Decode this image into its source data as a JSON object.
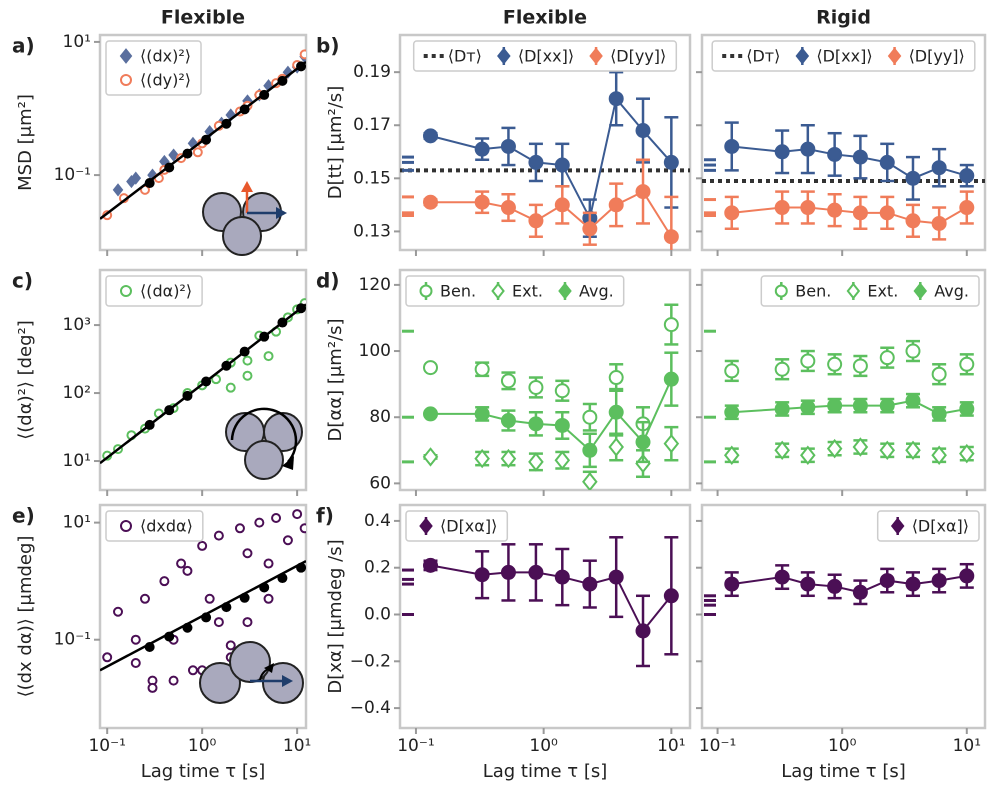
{
  "chart_data": [
    {
      "type": "scatter",
      "title": "Flexible",
      "letter": "a)",
      "ylabel": "MSD [μm²]",
      "sharex": 6,
      "xlog": true,
      "ylog": true,
      "ylim": [
        0.0075,
        12.7
      ],
      "yticks": [
        {
          "value": 0.1,
          "label": "10⁻¹"
        },
        {
          "value": 10,
          "label": "10¹"
        }
      ],
      "legend": "upper left",
      "series": [
        {
          "name": "⟨(dx)²⟩",
          "marker": "diamond",
          "filled": true,
          "color": "#5a6f9e",
          "x": [
            0.13,
            0.18,
            0.2,
            0.3,
            0.4,
            0.5,
            0.8,
            1.2,
            1.6,
            2,
            3,
            4,
            5,
            8,
            10,
            12
          ],
          "values": [
            0.06,
            0.08,
            0.09,
            0.1,
            0.16,
            0.2,
            0.3,
            0.45,
            0.6,
            0.8,
            1.3,
            1.6,
            2.2,
            3.5,
            4.2,
            6
          ]
        },
        {
          "name": "⟨(dy)²⟩",
          "marker": "circle",
          "filled": false,
          "color": "#f07c5a",
          "x": [
            0.1,
            0.15,
            0.25,
            0.35,
            0.4,
            0.6,
            0.9,
            1,
            1.5,
            2.5,
            3,
            4,
            6,
            7,
            10,
            12
          ],
          "values": [
            0.025,
            0.045,
            0.06,
            0.09,
            0.12,
            0.18,
            0.22,
            0.3,
            0.55,
            0.9,
            1.1,
            1.6,
            2.4,
            2.8,
            4.5,
            6.5
          ]
        },
        {
          "type": "line",
          "color": "#000000",
          "x": [
            0.084,
            12.4
          ],
          "values": [
            0.022,
            5
          ]
        },
        {
          "marker": "circle",
          "filled": true,
          "color": "#000000",
          "x": [
            0.28,
            0.45,
            0.7,
            1.1,
            1.8,
            2.8,
            4.5,
            7,
            11
          ],
          "values": [
            0.076,
            0.13,
            0.21,
            0.34,
            0.59,
            0.97,
            1.6,
            2.6,
            4.3
          ]
        }
      ]
    },
    {
      "type": "errorbar",
      "title": "Flexible",
      "letter": "b)",
      "ylabel": "D[tt] [μm²/s]",
      "sharex": 7,
      "ylim": [
        0.123,
        0.204
      ],
      "yticks": [
        0.13,
        0.15,
        0.17,
        0.19
      ],
      "legend": "upper center",
      "x": [
        0.13,
        0.33,
        0.53,
        0.87,
        1.4,
        2.3,
        3.7,
        6,
        10
      ],
      "series": [
        {
          "name": "⟨Dᴛ⟩",
          "type": "hline",
          "color": "#333333",
          "value": 0.153
        },
        {
          "name": "⟨D[xx]⟩",
          "marker": "circle",
          "filled": true,
          "color": "#3b5b92",
          "linestyle": "-",
          "values": [
            0.166,
            0.161,
            0.162,
            0.156,
            0.155,
            0.135,
            0.18,
            0.168,
            0.156
          ],
          "errors": [
            0.001,
            0.004,
            0.007,
            0.007,
            0.008,
            0.007,
            0.01,
            0.012,
            0.017
          ],
          "edge": [
            0.158,
            0.156,
            0.153
          ]
        },
        {
          "name": "⟨D[yy]⟩",
          "marker": "circle",
          "filled": true,
          "color": "#f07c5a",
          "linestyle": "-",
          "values": [
            0.141,
            0.141,
            0.139,
            0.134,
            0.14,
            0.131,
            0.14,
            0.145,
            0.128
          ],
          "errors": [
            0.001,
            0.004,
            0.005,
            0.006,
            0.007,
            0.006,
            0.008,
            0.012,
            0.015
          ],
          "edge": [
            0.143,
            0.137,
            0.136
          ]
        }
      ]
    },
    {
      "type": "errorbar",
      "title": "Rigid",
      "sharex": 8,
      "sharey": 1,
      "legend": "upper center",
      "x": [
        0.13,
        0.33,
        0.53,
        0.87,
        1.4,
        2.3,
        3.7,
        6,
        10
      ],
      "series": [
        {
          "name": "⟨Dᴛ⟩",
          "type": "hline",
          "color": "#333333",
          "value": 0.149
        },
        {
          "name": "⟨D[xx]⟩",
          "marker": "circle",
          "filled": true,
          "color": "#3b5b92",
          "linestyle": "-",
          "values": [
            0.162,
            0.16,
            0.161,
            0.159,
            0.158,
            0.156,
            0.15,
            0.154,
            0.151
          ],
          "errors": [
            0.009,
            0.008,
            0.009,
            0.008,
            0.008,
            0.007,
            0.008,
            0.007,
            0.004
          ],
          "edge": [
            0.157,
            0.155,
            0.153
          ]
        },
        {
          "name": "⟨D[yy]⟩",
          "marker": "circle",
          "filled": true,
          "color": "#f07c5a",
          "linestyle": "-",
          "values": [
            0.137,
            0.139,
            0.139,
            0.138,
            0.137,
            0.137,
            0.134,
            0.133,
            0.139
          ],
          "errors": [
            0.006,
            0.006,
            0.006,
            0.006,
            0.006,
            0.006,
            0.006,
            0.006,
            0.006
          ],
          "edge": [
            0.142,
            0.137,
            0.136
          ]
        }
      ]
    },
    {
      "type": "scatter",
      "letter": "c)",
      "ylabel": "⟨(dα)²⟩ [deg²]",
      "sharex": 6,
      "xlog": true,
      "ylog": true,
      "ylim": [
        3.75,
        6460
      ],
      "yticks": [
        {
          "value": 10,
          "label": "10¹"
        },
        {
          "value": 100,
          "label": "10²"
        },
        {
          "value": 1000,
          "label": "10³"
        }
      ],
      "legend": "upper left",
      "series": [
        {
          "name": "⟨(dα)²⟩",
          "marker": "circle",
          "filled": false,
          "color": "#5cbf5e",
          "x": [
            0.1,
            0.13,
            0.18,
            0.25,
            0.35,
            0.5,
            0.7,
            1,
            1.4,
            2,
            2,
            3,
            3,
            4,
            5,
            6,
            8,
            10,
            12
          ],
          "values": [
            12,
            15,
            24,
            30,
            50,
            60,
            100,
            130,
            160,
            280,
            120,
            300,
            180,
            700,
            350,
            800,
            1300,
            1700,
            2100
          ]
        },
        {
          "type": "line",
          "color": "#000000",
          "x": [
            0.084,
            12.4
          ],
          "values": [
            9.3,
            2020
          ]
        },
        {
          "marker": "circle",
          "filled": true,
          "color": "#000000",
          "x": [
            0.28,
            0.45,
            0.7,
            1.1,
            1.8,
            2.8,
            4.5,
            7,
            11
          ],
          "values": [
            34,
            56,
            91,
            148,
            252,
            407,
            675,
            1090,
            1770
          ]
        }
      ]
    },
    {
      "type": "errorbar",
      "letter": "d)",
      "ylabel": "D[αα] [μm²/s]",
      "sharex": 7,
      "ylim": [
        58,
        124.5
      ],
      "yticks": [
        60,
        80,
        100,
        120
      ],
      "legend": "upper left",
      "x": [
        0.13,
        0.33,
        0.53,
        0.87,
        1.4,
        2.3,
        3.7,
        6,
        10
      ],
      "series": [
        {
          "name": "Ben.",
          "marker": "circle",
          "filled": false,
          "color": "#5cbf5e",
          "values": [
            95,
            94.5,
            91,
            89,
            88,
            80,
            92,
            78,
            108
          ],
          "errors": [
            0.5,
            2,
            2.5,
            3,
            3,
            4,
            4,
            5,
            6
          ],
          "edge": [
            106
          ]
        },
        {
          "name": "Ext.",
          "marker": "diamond",
          "filled": false,
          "color": "#5cbf5e",
          "values": [
            68,
            67.5,
            67.5,
            66.5,
            67,
            60.5,
            71,
            66,
            72
          ],
          "errors": [
            0.5,
            2,
            2,
            2.5,
            2.5,
            3,
            4,
            4,
            5
          ],
          "edge": [
            66.5
          ]
        },
        {
          "name": "Avg.",
          "marker": "circle",
          "filled": true,
          "color": "#5cbf5e",
          "linestyle": "-",
          "values": [
            81,
            81,
            79,
            78,
            77.5,
            70,
            81.5,
            72.5,
            91.5
          ],
          "errors": [
            0.5,
            2,
            3,
            3.5,
            4,
            5,
            7,
            6,
            8
          ],
          "edge": [
            80
          ]
        }
      ]
    },
    {
      "type": "errorbar",
      "sharex": 8,
      "sharey": 4,
      "legend": "upper right",
      "x": [
        0.13,
        0.33,
        0.53,
        0.87,
        1.4,
        2.3,
        3.7,
        6,
        10
      ],
      "series": [
        {
          "name": "Ben.",
          "marker": "circle",
          "filled": false,
          "color": "#5cbf5e",
          "values": [
            94,
            94.5,
            97,
            96,
            95.5,
            98,
            100,
            93,
            96
          ],
          "errors": [
            3,
            3,
            3,
            3,
            3,
            3,
            3,
            3,
            3
          ],
          "edge": [
            106
          ]
        },
        {
          "name": "Ext.",
          "marker": "diamond",
          "filled": false,
          "color": "#5cbf5e",
          "values": [
            68.5,
            70,
            68.5,
            70.5,
            71,
            70,
            70,
            68.5,
            69
          ],
          "errors": [
            2,
            2,
            2,
            2,
            2,
            2,
            2,
            2,
            2
          ],
          "edge": [
            66.5
          ]
        },
        {
          "name": "Avg.",
          "marker": "circle",
          "filled": true,
          "color": "#5cbf5e",
          "linestyle": "-",
          "values": [
            81.5,
            82.5,
            83,
            83.5,
            83.5,
            83.5,
            85,
            81,
            82.5
          ],
          "errors": [
            2,
            2,
            2,
            2,
            2,
            2,
            2,
            2,
            2
          ],
          "edge": [
            80
          ]
        }
      ]
    },
    {
      "type": "scatter",
      "letter": "e)",
      "ylabel": "⟨(dx dα)⟩ [μmdeg]",
      "xlabel": "Lag time τ [s]",
      "xlog": true,
      "ylog": true,
      "xlim": [
        0.084,
        12.4
      ],
      "xticks": [
        {
          "value": 0.1,
          "label": "10⁻¹"
        },
        {
          "value": 1,
          "label": "10⁰"
        },
        {
          "value": 10,
          "label": "10¹"
        }
      ],
      "ylim": [
        0.0031,
        20
      ],
      "yticks": [
        {
          "value": 0.1,
          "label": "10⁻¹"
        },
        {
          "value": 10,
          "label": "10¹"
        }
      ],
      "legend": "upper left",
      "series": [
        {
          "name": "⟨dxdα⟩",
          "marker": "circle",
          "filled": false,
          "color": "#4b0f55",
          "x": [
            0.1,
            0.13,
            0.2,
            0.25,
            0.3,
            0.4,
            0.5,
            0.6,
            0.8,
            1,
            1.2,
            1.5,
            2,
            2.5,
            3,
            4,
            5,
            6,
            8,
            10,
            12,
            0.3,
            0.5,
            1,
            2,
            3,
            5,
            0.2,
            0.7,
            1.5
          ],
          "values": [
            0.05,
            0.3,
            0.04,
            0.5,
            0.02,
            1,
            0.1,
            2,
            0.03,
            4,
            0.5,
            6,
            0.08,
            8,
            3,
            10,
            2,
            12,
            5,
            14,
            8,
            0.015,
            0.02,
            0.03,
            0.05,
            0.2,
            0.5,
            0.1,
            1.5,
            0.2
          ]
        },
        {
          "type": "line",
          "color": "#000000",
          "x": [
            0.084,
            12.4
          ],
          "values": [
            0.03,
            2.2
          ]
        },
        {
          "marker": "circle",
          "filled": true,
          "color": "#000000",
          "x": [
            0.28,
            0.45,
            0.7,
            1.1,
            1.8,
            2.8,
            4.5,
            7,
            11
          ],
          "values": [
            0.075,
            0.113,
            0.16,
            0.24,
            0.36,
            0.52,
            0.78,
            1.13,
            1.7
          ]
        }
      ]
    },
    {
      "type": "errorbar",
      "letter": "f)",
      "ylabel": "D[xα] [μmdeg /s]",
      "xlabel": "Lag time τ [s]",
      "xlog": true,
      "xlim": [
        0.075,
        14
      ],
      "xticks": [
        {
          "value": 0.1,
          "label": "10⁻¹"
        },
        {
          "value": 1,
          "label": "10⁰"
        },
        {
          "value": 10,
          "label": "10¹"
        }
      ],
      "ylim": [
        -0.485,
        0.468
      ],
      "yticks": [
        {
          "value": -0.4,
          "label": "−0.4"
        },
        {
          "value": -0.2,
          "label": "−0.2"
        },
        {
          "value": 0,
          "label": "0.0"
        },
        0.2,
        0.4
      ],
      "legend": "upper left",
      "x": [
        0.13,
        0.33,
        0.53,
        0.87,
        1.4,
        2.3,
        3.7,
        6,
        10
      ],
      "series": [
        {
          "name": "⟨D[xα]⟩",
          "marker": "circle",
          "filled": true,
          "color": "#4b0f55",
          "linestyle": "-",
          "values": [
            0.21,
            0.17,
            0.18,
            0.18,
            0.16,
            0.13,
            0.16,
            -0.07,
            0.08
          ],
          "errors": [
            0.02,
            0.1,
            0.12,
            0.12,
            0.12,
            0.1,
            0.17,
            0.15,
            0.25
          ],
          "edge": [
            0.19,
            0.15,
            0.13,
            0
          ]
        }
      ]
    },
    {
      "type": "errorbar",
      "xlabel": "Lag time τ [s]",
      "sharey": 7,
      "xlog": true,
      "xlim": [
        0.075,
        14
      ],
      "xticks": [
        {
          "value": 0.1,
          "label": "10⁻¹"
        },
        {
          "value": 1,
          "label": "10⁰"
        },
        {
          "value": 10,
          "label": "10¹"
        }
      ],
      "legend": "upper right",
      "x": [
        0.13,
        0.33,
        0.53,
        0.87,
        1.4,
        2.3,
        3.7,
        6,
        10
      ],
      "series": [
        {
          "name": "⟨D[xα]⟩",
          "marker": "circle",
          "filled": true,
          "color": "#4b0f55",
          "linestyle": "-",
          "values": [
            0.13,
            0.16,
            0.13,
            0.12,
            0.095,
            0.145,
            0.13,
            0.145,
            0.165
          ],
          "errors": [
            0.05,
            0.05,
            0.05,
            0.05,
            0.05,
            0.05,
            0.05,
            0.05,
            0.05
          ],
          "edge": [
            0.08,
            0.06,
            0.04,
            0
          ]
        }
      ]
    }
  ]
}
